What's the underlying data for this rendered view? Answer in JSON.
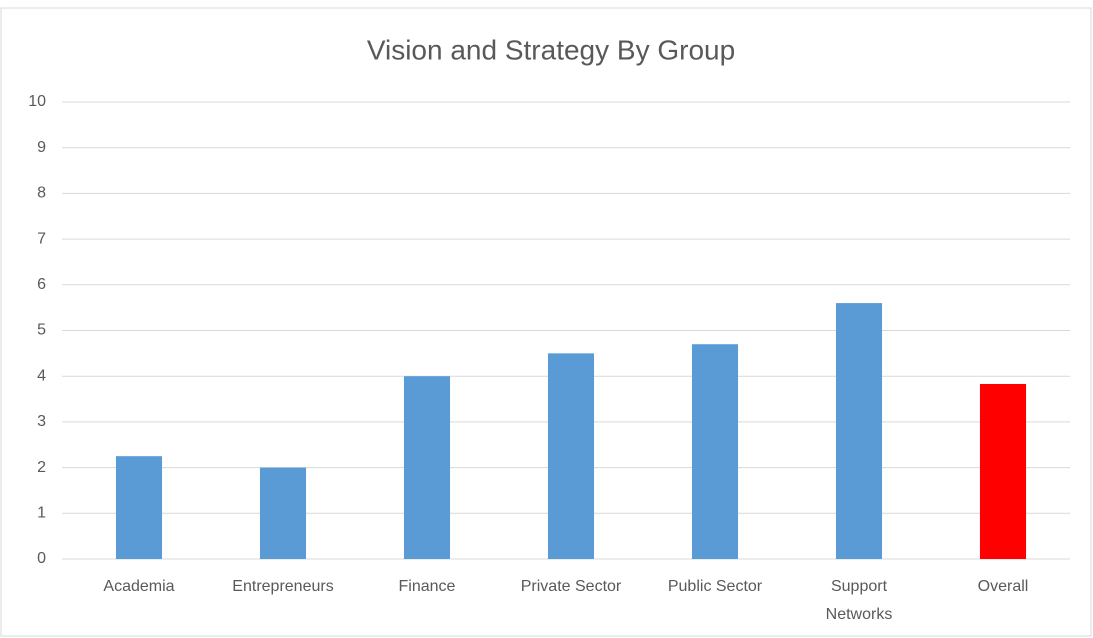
{
  "chart_data": {
    "type": "bar",
    "title": "Vision and Strategy By Group",
    "categories": [
      "Academia",
      "Entrepreneurs",
      "Finance",
      "Private Sector",
      "Public Sector",
      "Support Networks",
      "Overall"
    ],
    "values": [
      2.25,
      2.0,
      4.0,
      4.5,
      4.7,
      5.6,
      3.83
    ],
    "colors": [
      "#5b9bd5",
      "#5b9bd5",
      "#5b9bd5",
      "#5b9bd5",
      "#5b9bd5",
      "#5b9bd5",
      "#ff0000"
    ],
    "ylim": [
      0,
      10
    ],
    "yticks": [
      0,
      1,
      2,
      3,
      4,
      5,
      6,
      7,
      8,
      9,
      10
    ],
    "grid": true
  }
}
